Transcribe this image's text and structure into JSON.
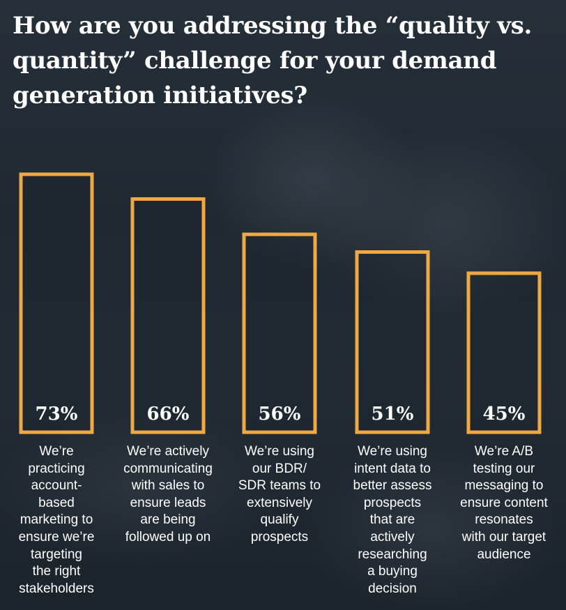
{
  "title": "How are you addressing the “quality vs. quantity” challenge for your demand generation initiatives?",
  "colors": {
    "bar_outline": "#f0a843",
    "text": "#ffffff"
  },
  "chart_data": {
    "type": "bar",
    "title": "How are you addressing the “quality vs. quantity” challenge for your demand generation initiatives?",
    "ylim": [
      0,
      73
    ],
    "grid": false,
    "legend": "none",
    "categories": [
      "We’re practicing account-based marketing to ensure we’re targeting the right stakeholders",
      "We’re actively communicating with sales to ensure leads are being followed up on",
      "We’re using our BDR/ SDR teams to extensively qualify prospects",
      "We’re using intent data to better assess prospects that are actively researching a buying decision",
      "We’re A/B testing our messaging to ensure content resonates with our target audience"
    ],
    "values": [
      73,
      66,
      56,
      51,
      45
    ],
    "data_labels": [
      "73%",
      "66%",
      "56%",
      "51%",
      "45%"
    ],
    "description_lines": [
      [
        "We’re",
        "practicing",
        "account-",
        "based",
        "marketing to",
        "ensure we’re",
        "targeting",
        "the right",
        "stakeholders"
      ],
      [
        "We’re actively",
        "communicating",
        "with sales to",
        "ensure leads",
        "are being",
        "followed up on"
      ],
      [
        "We’re using",
        "our BDR/",
        "SDR teams to",
        "extensively",
        "qualify",
        "prospects"
      ],
      [
        "We’re using",
        "intent data to",
        "better assess",
        "prospects",
        "that are",
        "actively",
        "researching",
        "a buying",
        "decision"
      ],
      [
        "We’re A/B",
        "testing our",
        "messaging to",
        "ensure content",
        "resonates",
        "with our target",
        "audience"
      ]
    ]
  }
}
